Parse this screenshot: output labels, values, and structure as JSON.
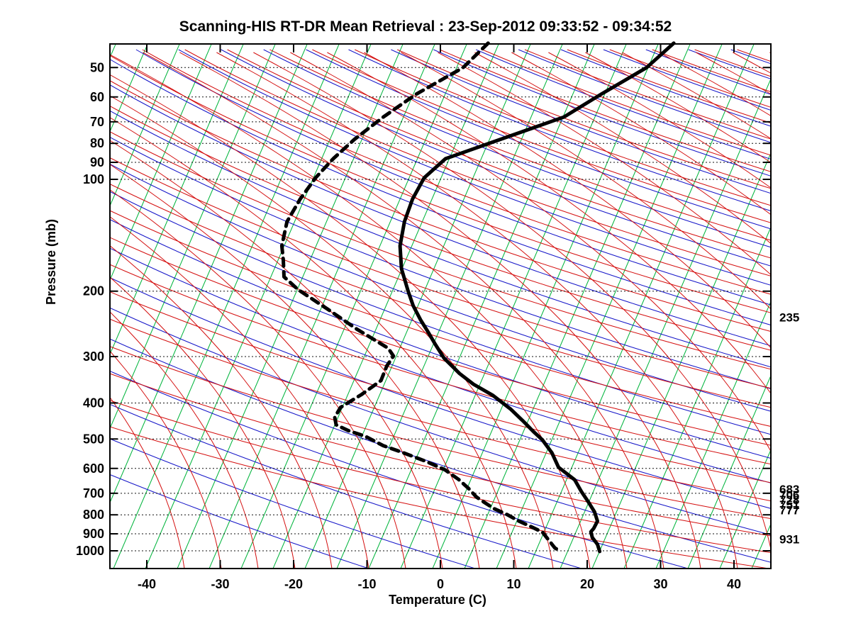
{
  "title": "Scanning-HIS RT-DR Mean Retrieval : 23-Sep-2012 09:33:52 - 09:34:52",
  "colors": {
    "isotherm_green": "#00b43c",
    "dry_adiabat_blue": "#1414c8",
    "moist_adiabat_red": "#d40f0f",
    "profile_black": "#000000",
    "grid_dotted": "#111111",
    "background": "#ffffff"
  },
  "axes": {
    "x_label": "Temperature (C)",
    "y_label": "Pressure (mb)",
    "temp_ticks": [
      -40,
      -30,
      -20,
      -10,
      0,
      10,
      20,
      30,
      40
    ],
    "pressure_ticks": [
      50,
      60,
      70,
      80,
      90,
      100,
      200,
      300,
      400,
      500,
      600,
      700,
      800,
      900,
      1000
    ],
    "temp_range": [
      -45,
      45
    ],
    "pressure_range": [
      43,
      1116
    ]
  },
  "right_pressure_labels": [
    {
      "label": "235",
      "p": 235
    },
    {
      "label": "683",
      "p": 683
    },
    {
      "label": "706",
      "p": 706
    },
    {
      "label": "728",
      "p": 728
    },
    {
      "label": "751",
      "p": 751
    },
    {
      "label": "777",
      "p": 777
    },
    {
      "label": "931",
      "p": 931
    }
  ],
  "chart_data": {
    "type": "line",
    "subtype": "skew-t-log-p-sounding",
    "title": "Scanning-HIS RT-DR Mean Retrieval : 23-Sep-2012 09:33:52 - 09:34:52",
    "xlabel": "Temperature (C)",
    "ylabel": "Pressure (mb)",
    "xlim": [
      -45,
      45
    ],
    "ylim_pressure_mb": [
      43,
      1116
    ],
    "y_scale": "log",
    "grid": "dotted horizontal at labeled pressures",
    "legend": "none",
    "note": "t values are the plotted skewed x-axis position in deg C; p in mb",
    "series": [
      {
        "name": "temperature",
        "style": "solid thick black",
        "points": [
          {
            "p": 43,
            "t": 31.8
          },
          {
            "p": 50,
            "t": 28.1
          },
          {
            "p": 59,
            "t": 21.9
          },
          {
            "p": 68,
            "t": 16.8
          },
          {
            "p": 78,
            "t": 8.2
          },
          {
            "p": 88,
            "t": 0.7
          },
          {
            "p": 99,
            "t": -2.2
          },
          {
            "p": 113,
            "t": -3.8
          },
          {
            "p": 130,
            "t": -4.9
          },
          {
            "p": 151,
            "t": -5.5
          },
          {
            "p": 174,
            "t": -5.3
          },
          {
            "p": 200,
            "t": -4.4
          },
          {
            "p": 219,
            "t": -3.7
          },
          {
            "p": 239,
            "t": -2.7
          },
          {
            "p": 259,
            "t": -1.6
          },
          {
            "p": 278,
            "t": -0.7
          },
          {
            "p": 303,
            "t": 0.5
          },
          {
            "p": 333,
            "t": 2.6
          },
          {
            "p": 356,
            "t": 4.5
          },
          {
            "p": 381,
            "t": 7.1
          },
          {
            "p": 416,
            "t": 9.6
          },
          {
            "p": 446,
            "t": 11.2
          },
          {
            "p": 478,
            "t": 12.7
          },
          {
            "p": 503,
            "t": 13.9
          },
          {
            "p": 545,
            "t": 15.2
          },
          {
            "p": 596,
            "t": 16.1
          },
          {
            "p": 644,
            "t": 18.3
          },
          {
            "p": 692,
            "t": 19.2
          },
          {
            "p": 741,
            "t": 20.2
          },
          {
            "p": 786,
            "t": 21.0
          },
          {
            "p": 832,
            "t": 21.4
          },
          {
            "p": 870,
            "t": 20.9
          },
          {
            "p": 889,
            "t": 20.5
          },
          {
            "p": 921,
            "t": 20.7
          },
          {
            "p": 961,
            "t": 21.4
          },
          {
            "p": 1004,
            "t": 21.7
          }
        ]
      },
      {
        "name": "dew-point",
        "style": "dashed thick black",
        "points": [
          {
            "p": 43,
            "t": 6.5
          },
          {
            "p": 50,
            "t": 3.1
          },
          {
            "p": 59,
            "t": -3.3
          },
          {
            "p": 68,
            "t": -7.8
          },
          {
            "p": 78,
            "t": -11.7
          },
          {
            "p": 88,
            "t": -14.6
          },
          {
            "p": 99,
            "t": -17.0
          },
          {
            "p": 113,
            "t": -19.1
          },
          {
            "p": 130,
            "t": -20.9
          },
          {
            "p": 151,
            "t": -21.6
          },
          {
            "p": 165,
            "t": -21.4
          },
          {
            "p": 183,
            "t": -21.3
          },
          {
            "p": 198,
            "t": -19.4
          },
          {
            "p": 224,
            "t": -15.3
          },
          {
            "p": 253,
            "t": -11.4
          },
          {
            "p": 285,
            "t": -7.1
          },
          {
            "p": 299,
            "t": -6.4
          },
          {
            "p": 318,
            "t": -7.3
          },
          {
            "p": 348,
            "t": -8.1
          },
          {
            "p": 379,
            "t": -10.7
          },
          {
            "p": 411,
            "t": -13.6
          },
          {
            "p": 437,
            "t": -14.4
          },
          {
            "p": 458,
            "t": -14.2
          },
          {
            "p": 475,
            "t": -12.5
          },
          {
            "p": 492,
            "t": -10.2
          },
          {
            "p": 521,
            "t": -7.8
          },
          {
            "p": 544,
            "t": -5.1
          },
          {
            "p": 574,
            "t": -2.0
          },
          {
            "p": 605,
            "t": 0.6
          },
          {
            "p": 643,
            "t": 2.5
          },
          {
            "p": 678,
            "t": 3.8
          },
          {
            "p": 716,
            "t": 4.9
          },
          {
            "p": 743,
            "t": 6.1
          },
          {
            "p": 770,
            "t": 7.3
          },
          {
            "p": 799,
            "t": 9.1
          },
          {
            "p": 830,
            "t": 10.6
          },
          {
            "p": 860,
            "t": 12.3
          },
          {
            "p": 891,
            "t": 13.9
          },
          {
            "p": 983,
            "t": 15.6
          },
          {
            "p": 1000,
            "t": 16.3
          }
        ]
      }
    ]
  }
}
